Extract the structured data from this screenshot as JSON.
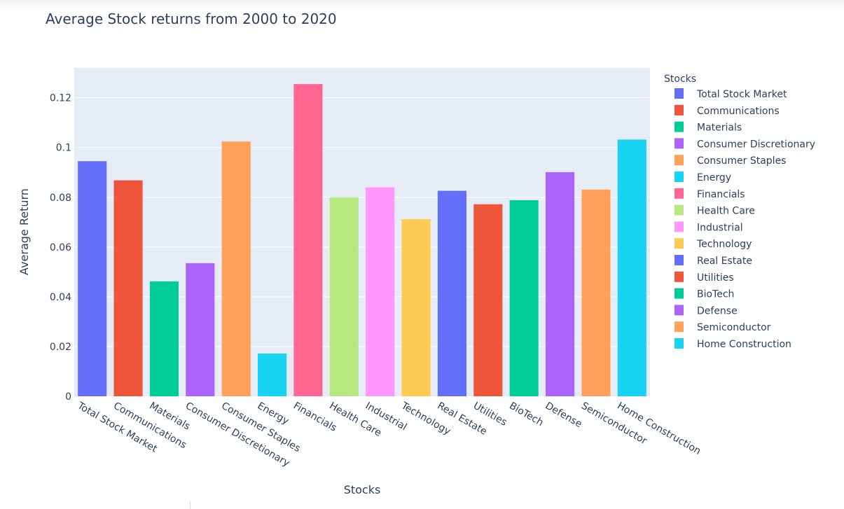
{
  "chart_data": {
    "type": "bar",
    "title": "Average Stock returns from 2000 to 2020",
    "xlabel": "Stocks",
    "ylabel": "Average Return",
    "legend_title": "Stocks",
    "legend_position": "right",
    "grid": true,
    "ylim": [
      0,
      0.132
    ],
    "yticks": [
      0,
      0.02,
      0.04,
      0.06,
      0.08,
      0.1,
      0.12
    ],
    "ytick_labels": [
      "0",
      "0.02",
      "0.04",
      "0.06",
      "0.08",
      "0.1",
      "0.12"
    ],
    "categories": [
      "Total Stock Market",
      "Communications",
      "Materials",
      "Consumer Discretionary",
      "Consumer Staples",
      "Energy",
      "Financials",
      "Health Care",
      "Industrial",
      "Technology",
      "Real Estate",
      "Utilities",
      "BioTech",
      "Defense",
      "Semiconductor",
      "Home Construction"
    ],
    "values": [
      0.0945,
      0.0868,
      0.0462,
      0.0535,
      0.1024,
      0.0172,
      0.1255,
      0.08,
      0.084,
      0.0712,
      0.0826,
      0.0772,
      0.0788,
      0.0901,
      0.0831,
      0.1032
    ],
    "colors": [
      "#636efa",
      "#ef553b",
      "#00cc96",
      "#ab63fa",
      "#ffa15a",
      "#19d3f3",
      "#ff6692",
      "#b6e880",
      "#ff97ff",
      "#fecb52",
      "#636efa",
      "#ef553b",
      "#00cc96",
      "#ab63fa",
      "#ffa15a",
      "#19d3f3"
    ],
    "plot_background": "#e5ecf6",
    "gridline_color": "#ffffff"
  }
}
